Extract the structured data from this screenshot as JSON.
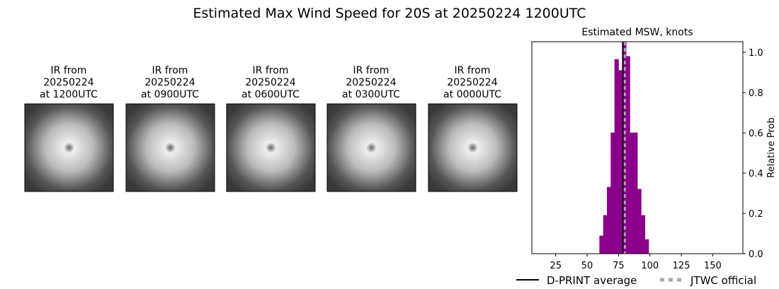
{
  "chart_data": {
    "type": "histogram",
    "title": "Estimated Max Wind Speed for 20S at 20250224 1200UTC",
    "panels": [
      {
        "caption": [
          "IR from",
          "20250224",
          "at 1200UTC"
        ]
      },
      {
        "caption": [
          "IR from",
          "20250224",
          "at 0900UTC"
        ]
      },
      {
        "caption": [
          "IR from",
          "20250224",
          "at 0600UTC"
        ]
      },
      {
        "caption": [
          "IR from",
          "20250224",
          "at 0300UTC"
        ]
      },
      {
        "caption": [
          "IR from",
          "20250224",
          "at 0000UTC"
        ]
      }
    ],
    "subtitle": "Estimated MSW, knots",
    "y_label": "Relative Prob",
    "color": "#8b008b",
    "bins": [
      15,
      18,
      21,
      24,
      27,
      30,
      33,
      36,
      39,
      42,
      45,
      48,
      51,
      54,
      57,
      60,
      63,
      66,
      69,
      72,
      75,
      78,
      81,
      84,
      87,
      90,
      93,
      96,
      99,
      102,
      105,
      108,
      111,
      114,
      117,
      120,
      123,
      126,
      129,
      132,
      135,
      138,
      141,
      144,
      147,
      150,
      153,
      156,
      159,
      162,
      165,
      168
    ],
    "values": [
      0,
      0,
      0,
      0,
      0,
      0,
      0,
      0,
      0,
      0,
      0,
      0,
      0,
      0,
      0,
      0.088,
      0.19,
      0.33,
      0.6,
      0.965,
      0.91,
      1.05,
      0.98,
      0.6,
      0.6,
      0.32,
      0.19,
      0.07,
      0,
      0,
      0,
      0,
      0,
      0,
      0,
      0,
      0,
      0,
      0,
      0,
      0,
      0,
      0,
      0,
      0,
      0,
      0,
      0,
      0,
      0,
      0
    ],
    "xlim": [
      6,
      174
    ],
    "ylim": [
      0,
      1.053
    ],
    "xticks": [
      25,
      50,
      75,
      100,
      125,
      150
    ],
    "yticks": [
      {
        "value": 0,
        "label": "0.0"
      },
      {
        "value": 0.2,
        "label": "0.2"
      },
      {
        "value": 0.4,
        "label": "0.4"
      },
      {
        "value": 0.6,
        "label": "0.6"
      },
      {
        "value": 0.8,
        "label": "0.8"
      },
      {
        "value": 1,
        "label": "1.0"
      }
    ],
    "reference_lines": [
      {
        "name": "D-PRINT average",
        "value": 78.5,
        "color": "#000000",
        "dash": false
      },
      {
        "name": "JTWC official",
        "value": 80,
        "color": "#aaaaaa",
        "dash": true
      }
    ]
  }
}
